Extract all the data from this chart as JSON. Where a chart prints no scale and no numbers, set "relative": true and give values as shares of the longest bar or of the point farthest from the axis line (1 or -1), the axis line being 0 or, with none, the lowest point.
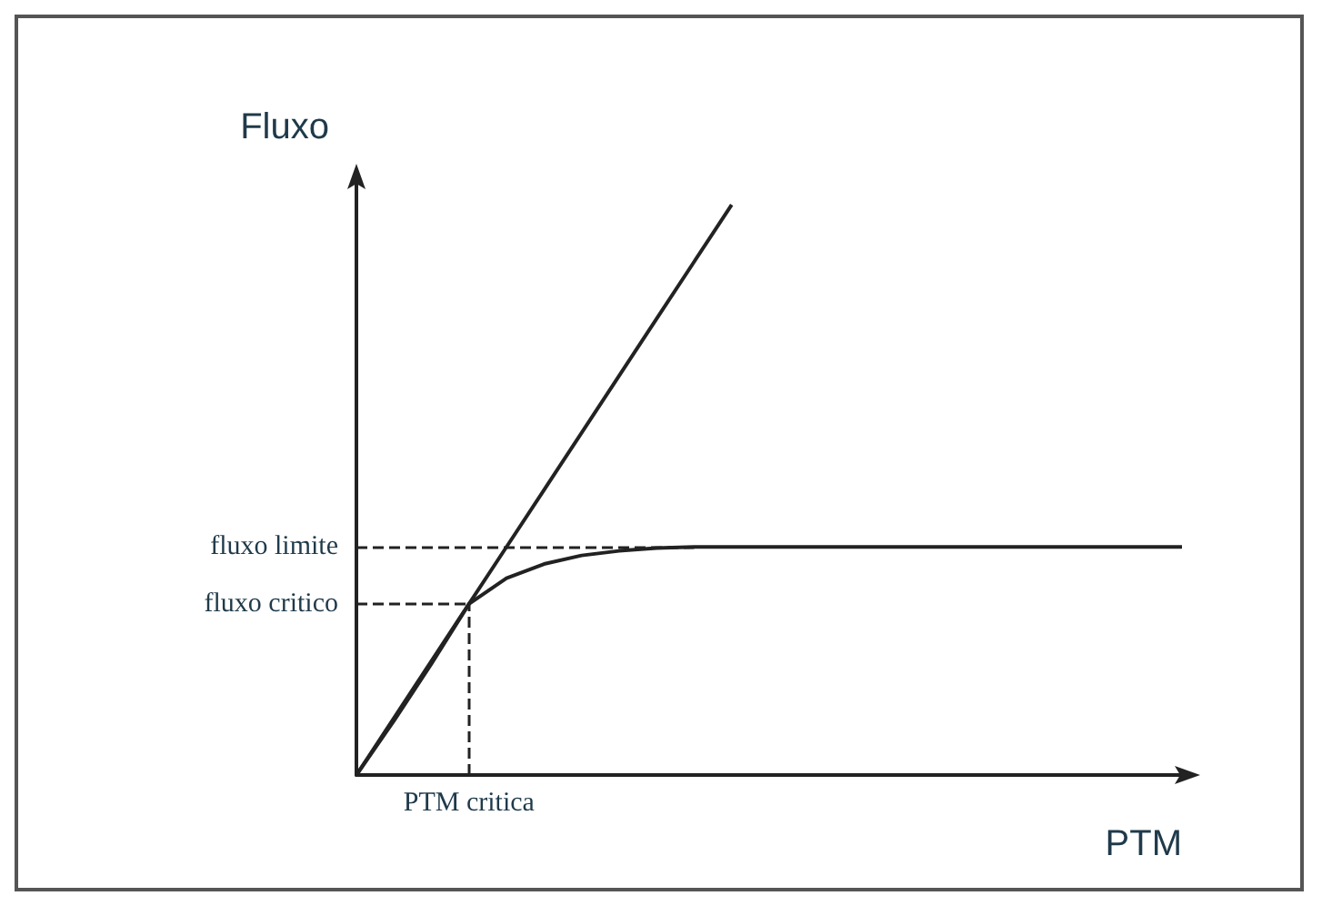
{
  "chart_data": {
    "type": "line",
    "relative": true,
    "xlabel": "PTM",
    "ylabel": "Fluxo",
    "marker": "none",
    "line_style": "solid",
    "annotations": [
      "PTM critica"
    ],
    "categories": [
      null,
      null,
      null,
      null,
      null,
      null,
      null,
      null,
      null,
      null,
      null,
      null,
      null,
      null,
      null,
      null,
      null,
      null,
      null,
      null,
      null,
      null,
      null
    ],
    "series": [
      {
        "color": "#222222",
        "values": [
          0,
          0.1,
          0.2,
          0.3,
          0.4,
          0.5,
          0.6,
          0.7,
          0.8,
          0.9,
          1,
          null,
          null,
          null,
          null,
          null,
          null,
          null,
          null,
          null,
          null,
          null,
          null
        ]
      },
      {
        "color": "#222222",
        "values": [
          0,
          0.095,
          0.195,
          0.3,
          0.345,
          0.37,
          0.385,
          0.393,
          0.398,
          0.4,
          0.4,
          0.4,
          0.4,
          0.4,
          0.4,
          0.4,
          0.4,
          0.4,
          0.4,
          0.4,
          0.4,
          0.4,
          0.4
        ]
      }
    ],
    "ref_lines": [
      {
        "axis": "y",
        "value": 0.4,
        "label": "fluxo limite",
        "line_style": "dashed"
      },
      {
        "axis": "y",
        "value": 0.3,
        "label": "fluxo critico",
        "line_style": "dashed"
      }
    ]
  }
}
